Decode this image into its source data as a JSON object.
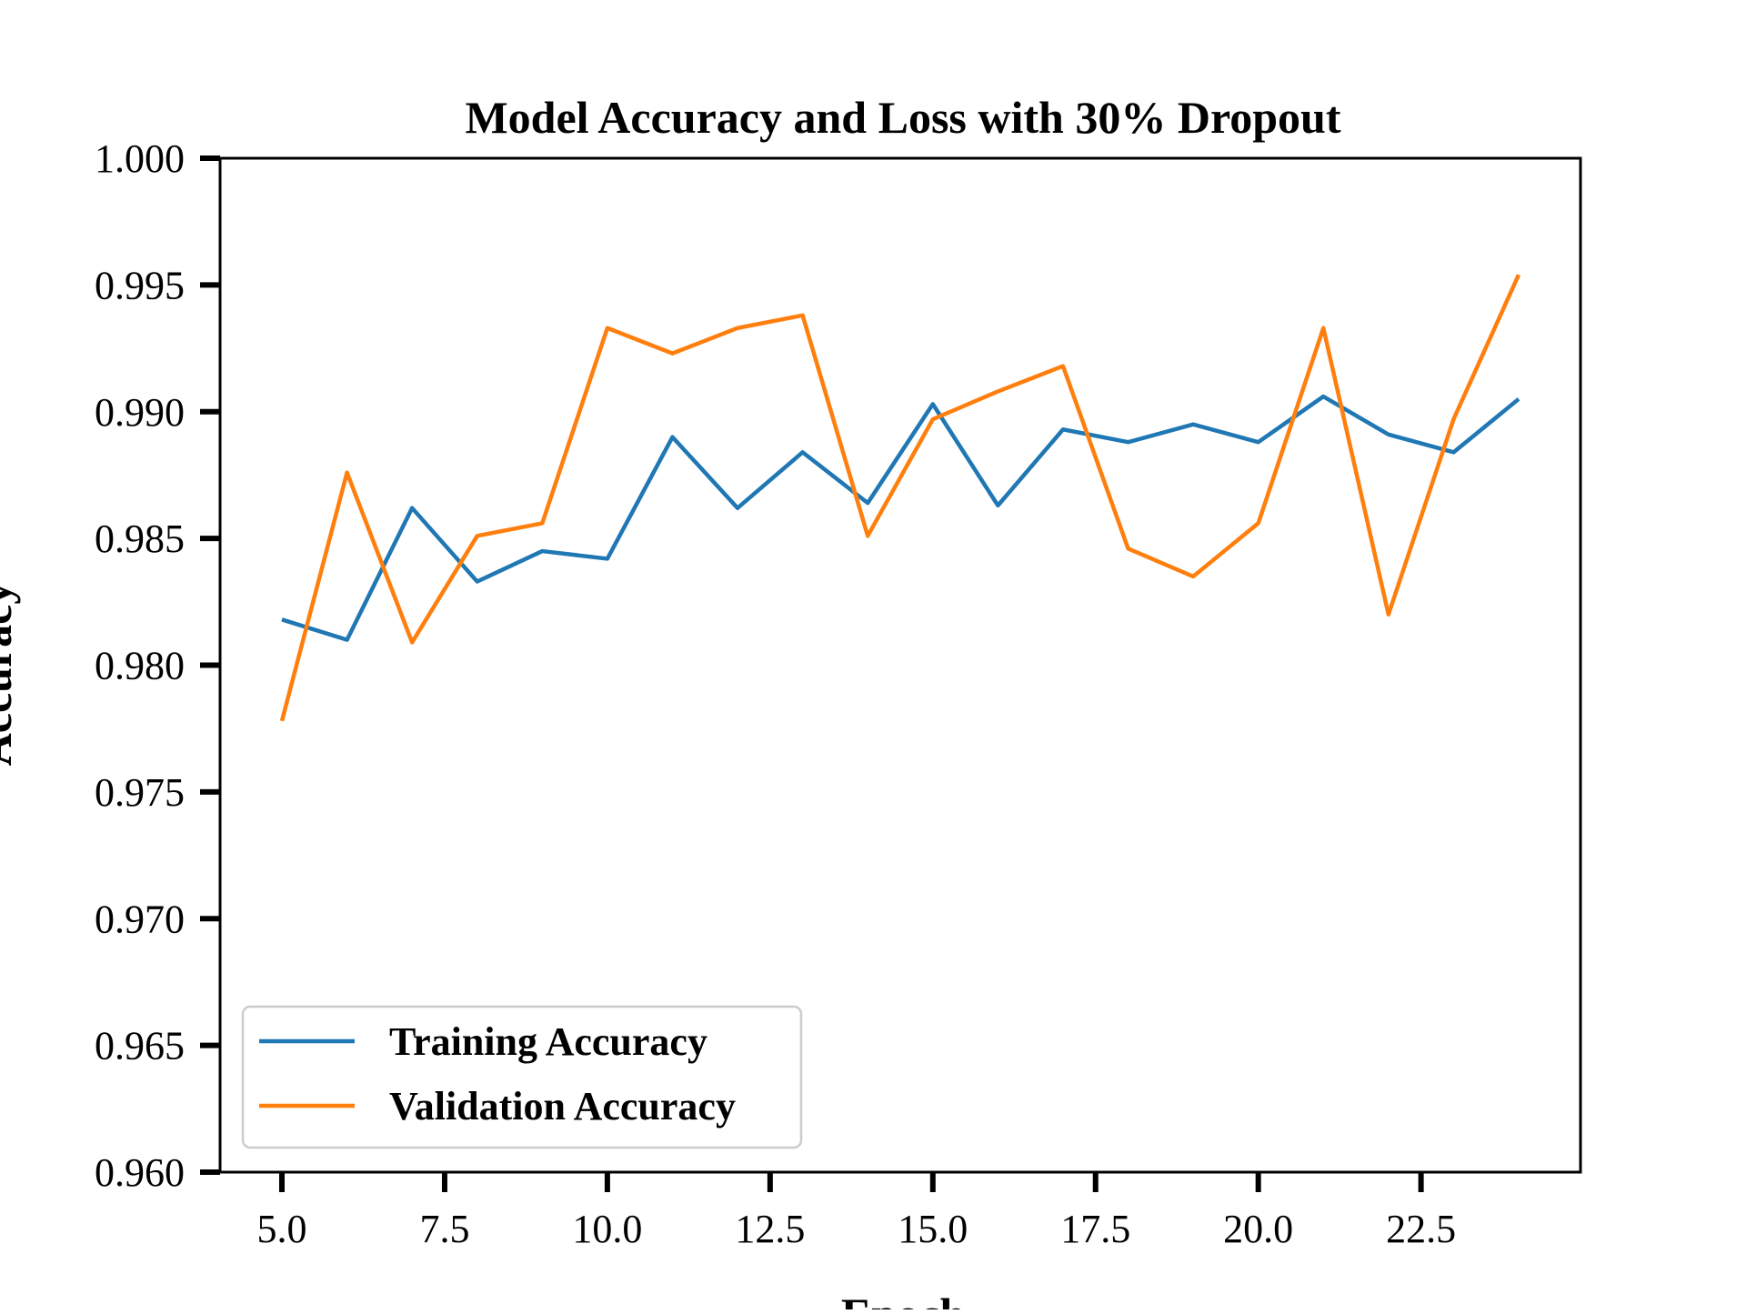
{
  "chart_data": {
    "type": "line",
    "title": "Model Accuracy and Loss with 30% Dropout",
    "xlabel": "Epoch",
    "ylabel": "Accuracy",
    "xlim": [
      4.05,
      24.95
    ],
    "ylim": [
      0.96,
      1.0
    ],
    "x_ticks": [
      5.0,
      7.5,
      10.0,
      12.5,
      15.0,
      17.5,
      20.0,
      22.5
    ],
    "x_tick_labels": [
      "5.0",
      "7.5",
      "10.0",
      "12.5",
      "15.0",
      "17.5",
      "20.0",
      "22.5"
    ],
    "y_ticks": [
      0.96,
      0.965,
      0.97,
      0.975,
      0.98,
      0.985,
      0.99,
      0.995,
      1.0
    ],
    "y_tick_labels": [
      "0.960",
      "0.965",
      "0.970",
      "0.975",
      "0.980",
      "0.985",
      "0.990",
      "0.995",
      "1.000"
    ],
    "grid": false,
    "legend_position": "lower-left",
    "x": [
      5,
      6,
      7,
      8,
      9,
      10,
      11,
      12,
      13,
      14,
      15,
      16,
      17,
      18,
      19,
      20,
      21,
      22,
      23,
      24
    ],
    "series": [
      {
        "name": "Training Accuracy",
        "color": "#1f77b4",
        "values": [
          0.9818,
          0.981,
          0.9862,
          0.9833,
          0.9845,
          0.9842,
          0.989,
          0.9862,
          0.9884,
          0.9864,
          0.9903,
          0.9863,
          0.9893,
          0.9888,
          0.9895,
          0.9888,
          0.9906,
          0.9891,
          0.9884,
          0.9905
        ]
      },
      {
        "name": "Validation Accuracy",
        "color": "#ff7f0e",
        "values": [
          0.9778,
          0.9876,
          0.9809,
          0.9851,
          0.9856,
          0.9933,
          0.9923,
          0.9933,
          0.9938,
          0.9851,
          0.9897,
          0.9908,
          0.9918,
          0.9846,
          0.9835,
          0.9856,
          0.9933,
          0.982,
          0.9897,
          0.9954
        ]
      }
    ]
  }
}
